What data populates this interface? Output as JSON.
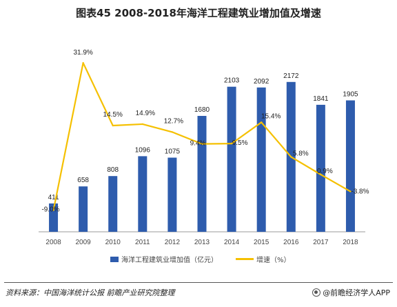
{
  "title": "图表45  2008-2018年海洋工程建筑业增加值及增速",
  "chart_data": {
    "type": "bar",
    "categories": [
      "2008",
      "2009",
      "2010",
      "2011",
      "2012",
      "2013",
      "2014",
      "2015",
      "2016",
      "2017",
      "2018"
    ],
    "series": [
      {
        "name": "海洋工程建筑业增加值（亿元）",
        "type": "bar",
        "color": "#2e5cad",
        "values": [
          411,
          658,
          808,
          1096,
          1075,
          1680,
          2103,
          2092,
          2172,
          1841,
          1905
        ],
        "labels": [
          "411",
          "658",
          "808",
          "1096",
          "1075",
          "1680",
          "2103",
          "2092",
          "2172",
          "1841",
          "1905"
        ]
      },
      {
        "name": "增速（%）",
        "type": "line",
        "color": "#f5c000",
        "values": [
          -9.0,
          31.9,
          14.5,
          14.9,
          12.7,
          9.4,
          9.5,
          15.4,
          5.8,
          0.9,
          -3.8
        ],
        "labels": [
          "-9.0%",
          "31.9%",
          "14.5%",
          "14.9%",
          "12.7%",
          "9.4%",
          "9.5%",
          "15.4%",
          "5.8%",
          "0.9%",
          "-3.8%"
        ]
      }
    ],
    "xlabel": "",
    "ylabel": "",
    "legend": "bottom",
    "grid": false
  },
  "footer": {
    "source": "资料来源：中国海洋统计公报 前瞻产业研究院整理",
    "brand": "@前瞻经济学人APP"
  }
}
